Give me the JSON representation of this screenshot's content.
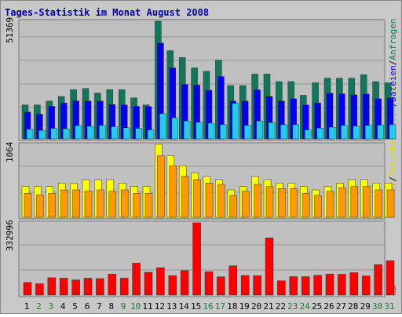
{
  "title": "Tages-Statistik im Monat August 2008",
  "colors": {
    "background": "#c8c8c8",
    "plot_bg": "#c0c0c0",
    "title_text": "#0000aa",
    "anfragen": "#10775a",
    "dateien": "#0000ee",
    "seiten": "#22ccee",
    "besuche": "#ffff00",
    "rechner": "#ff9900",
    "kb": "#ff0000",
    "weekday_text": "#000000",
    "weekend_text": "#1a7a3a"
  },
  "chart_data": [
    {
      "type": "bar",
      "panel": "top",
      "max_label": "51369",
      "ylim": [
        0,
        51369
      ],
      "categories": [
        "1",
        "2",
        "3",
        "4",
        "5",
        "6",
        "7",
        "8",
        "9",
        "10",
        "11",
        "12",
        "13",
        "14",
        "15",
        "16",
        "17",
        "18",
        "19",
        "20",
        "21",
        "22",
        "23",
        "24",
        "25",
        "26",
        "27",
        "28",
        "29",
        "30",
        "31"
      ],
      "series": [
        {
          "name": "Anfragen",
          "values": [
            14800,
            14800,
            16500,
            18500,
            21500,
            22000,
            20000,
            21500,
            21500,
            17900,
            14800,
            51369,
            38500,
            35500,
            31000,
            29500,
            34400,
            23300,
            23300,
            28300,
            28300,
            25000,
            25000,
            19000,
            24500,
            26500,
            26500,
            26500,
            28000,
            25000,
            24500
          ]
        },
        {
          "name": "Dateien",
          "values": [
            11700,
            10800,
            14200,
            15700,
            16600,
            16500,
            16500,
            15000,
            14800,
            14200,
            14100,
            41800,
            31000,
            23800,
            23500,
            21200,
            27200,
            16500,
            16500,
            21400,
            18600,
            16500,
            17500,
            14800,
            15700,
            20000,
            19700,
            19200,
            19600,
            17500,
            17800
          ]
        },
        {
          "name": "Seiten",
          "values": [
            4200,
            3700,
            4600,
            4400,
            5800,
            5500,
            5900,
            5300,
            4900,
            4600,
            3900,
            11000,
            9200,
            7800,
            7200,
            6900,
            6200,
            15500,
            5900,
            7800,
            7100,
            6200,
            6200,
            3900,
            4700,
            5100,
            5900,
            5600,
            5900,
            6000,
            6200
          ]
        }
      ],
      "legend": [
        "Anfragen",
        "/",
        "Dateien",
        "/",
        "Seiten"
      ]
    },
    {
      "type": "bar",
      "panel": "middle",
      "max_label": "1064",
      "ylim": [
        0,
        1064
      ],
      "categories": [
        "1",
        "2",
        "3",
        "4",
        "5",
        "6",
        "7",
        "8",
        "9",
        "10",
        "11",
        "12",
        "13",
        "14",
        "15",
        "16",
        "17",
        "18",
        "19",
        "20",
        "21",
        "22",
        "23",
        "24",
        "25",
        "26",
        "27",
        "28",
        "29",
        "30",
        "31"
      ],
      "series": [
        {
          "name": "Besuche",
          "values": [
            450,
            450,
            450,
            500,
            500,
            550,
            550,
            550,
            500,
            450,
            450,
            1064,
            900,
            750,
            650,
            600,
            550,
            400,
            450,
            600,
            550,
            500,
            500,
            450,
            400,
            450,
            500,
            550,
            550,
            500,
            500
          ]
        },
        {
          "name": "Rechner",
          "values": [
            350,
            330,
            350,
            400,
            400,
            380,
            400,
            380,
            400,
            350,
            350,
            900,
            750,
            600,
            550,
            500,
            480,
            320,
            380,
            480,
            450,
            420,
            420,
            350,
            320,
            380,
            430,
            450,
            450,
            400,
            400
          ]
        }
      ],
      "legend": [
        "Rechner",
        "/",
        "Besuche"
      ]
    },
    {
      "type": "bar",
      "panel": "bottom",
      "max_label": "332996",
      "ylim": [
        0,
        332996
      ],
      "categories": [
        "1",
        "2",
        "3",
        "4",
        "5",
        "6",
        "7",
        "8",
        "9",
        "10",
        "11",
        "12",
        "13",
        "14",
        "15",
        "16",
        "17",
        "18",
        "19",
        "20",
        "21",
        "22",
        "23",
        "24",
        "25",
        "26",
        "27",
        "28",
        "29",
        "30",
        "31"
      ],
      "series": [
        {
          "name": "kB",
          "values": [
            58000,
            52000,
            80000,
            78000,
            70000,
            78000,
            76000,
            97000,
            78000,
            147000,
            105000,
            126000,
            89000,
            113000,
            332996,
            108000,
            84000,
            135000,
            90000,
            89000,
            264000,
            66000,
            85000,
            85000,
            91000,
            97000,
            96000,
            103000,
            88000,
            140000,
            158000
          ]
        }
      ],
      "legend": [
        "kB"
      ]
    }
  ],
  "x_axis": {
    "labels": [
      "1",
      "2",
      "3",
      "4",
      "5",
      "6",
      "7",
      "8",
      "9",
      "10",
      "11",
      "12",
      "13",
      "14",
      "15",
      "16",
      "17",
      "18",
      "19",
      "20",
      "21",
      "22",
      "23",
      "24",
      "25",
      "26",
      "27",
      "28",
      "29",
      "30",
      "31"
    ],
    "weekend": [
      false,
      true,
      true,
      false,
      false,
      false,
      false,
      false,
      true,
      true,
      false,
      false,
      false,
      false,
      false,
      true,
      true,
      false,
      false,
      false,
      false,
      false,
      true,
      true,
      false,
      false,
      false,
      false,
      false,
      true,
      true
    ]
  }
}
